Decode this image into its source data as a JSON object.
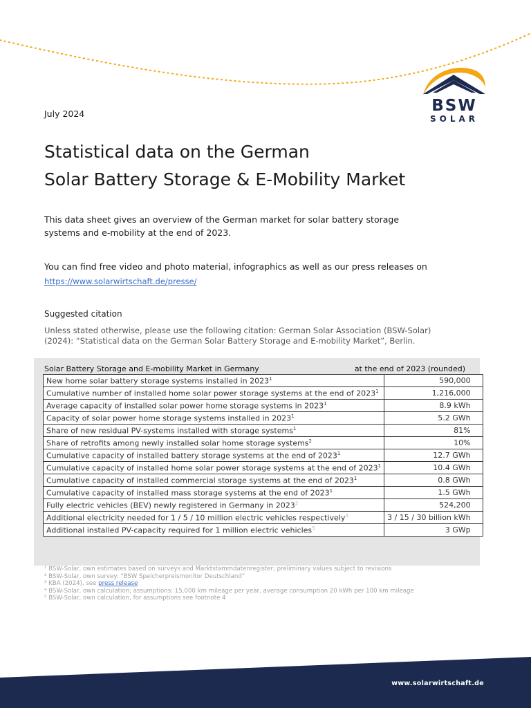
{
  "header": {
    "date": "July 2024",
    "logo": {
      "top": "BSW",
      "bottom": "SOLAR",
      "colors": {
        "arc": "#f3a712",
        "roof": "#1d2a4f",
        "text": "#1d2a4f"
      }
    }
  },
  "title": {
    "line1": "Statistical data on the German",
    "line2": "Solar Battery Storage & E-Mobility Market"
  },
  "intro": "This data sheet gives an overview of the German market for solar battery storage systems and e-mobility at the end of 2023.",
  "resources": {
    "text": "You can find free video and photo material, infographics as well as our press releases on",
    "link": "https://www.solarwirtschaft.de/presse/"
  },
  "citation": {
    "heading": "Suggested citation",
    "text": "Unless stated otherwise, please use the following citation: German Solar Association (BSW-Solar) (2024): “Statistical data on the German Solar Battery Storage and E-mobility Market”, Berlin."
  },
  "table": {
    "header_left": "Solar Battery Storage and E-mobility Market in Germany",
    "header_right": "at the end of 2023 (rounded)",
    "rows": [
      {
        "label": "New home solar battery storage systems installed in 2023",
        "note": "1",
        "value": "590,000"
      },
      {
        "label": "Cumulative number of installed home solar power storage systems at the end of 2023",
        "note": "1",
        "value": "1,216,000"
      },
      {
        "label": "Average capacity of installed solar power home storage systems in 2023",
        "note": "1",
        "value": "8.9 kWh"
      },
      {
        "label": "Capacity of solar power home storage systems installed in 2023",
        "note": "1",
        "value": "5.2 GWh"
      },
      {
        "label": "Share of new residual PV-systems installed with storage systems",
        "note": "1",
        "value": "81%"
      },
      {
        "label": "Share of retrofits among newly installed solar home storage systems",
        "note": "2",
        "value": "10%"
      },
      {
        "label": "Cumulative capacity of installed battery storage systems at the end of 2023",
        "note": "1",
        "value": "12.7 GWh"
      },
      {
        "label": "Cumulative capacity of installed home solar power storage systems at the end of 2023",
        "note": "1",
        "value": "10.4 GWh"
      },
      {
        "label": "Cumulative capacity of installed commercial storage systems at the end of 2023",
        "note": "1",
        "value": "0.8 GWh"
      },
      {
        "label": "Cumulative capacity of installed mass storage systems at the end of 2023",
        "note": "1",
        "value": "1.5 GWh"
      },
      {
        "label": "Fully electric vehicles (BEV) newly registered in Germany in 2023",
        "note": "3",
        "value": "524,200"
      },
      {
        "label": "Additional electricity needed for 1 / 5 / 10 million electric vehicles respectively",
        "note": "4",
        "value": "3 / 15 / 30 billion kWh"
      },
      {
        "label": "Additional installed PV-capacity required for 1 million electric vehicles",
        "note": "5",
        "value": "3 GWp"
      }
    ]
  },
  "footnotes": {
    "f1": "¹ BSW-Solar, own estimates based on surveys and Marktstammdatenregister; preliminary values subject to revisions",
    "f2": "² BSW-Solar, own survey: “BSW Speicherpreismonitor Deutschland”",
    "f3_prefix": "³ KBA (2024), see ",
    "f3_link": "press release",
    "f4": "⁴ BSW-Solar, own calculation; assumptions: 15,000 km mileage per year, average consumption 20 kWh per 100 km mileage",
    "f5": "⁵ BSW-Solar, own calculation, for assumptions see footnote 4"
  },
  "footer": {
    "url": "www.solarwirtschaft.de",
    "band_color": "#1d2a4f"
  },
  "colors": {
    "dots": "#f3a712",
    "link": "#3a6fc4"
  }
}
